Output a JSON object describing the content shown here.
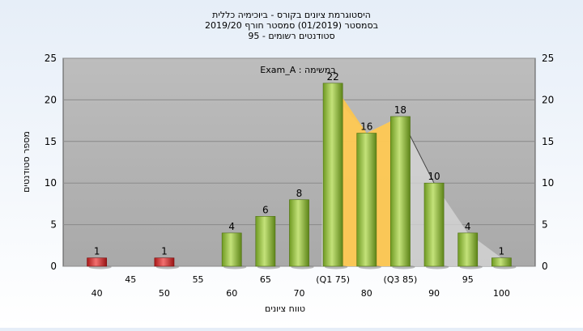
{
  "chart_data": {
    "type": "bar",
    "title_lines": [
      "היסטוגרמת ציונים בקורס - ביוכימיה כללית",
      "בסמסטר  (01/2019)  סמסטר חורף 2019/20",
      "סטודנטים רשומים - 95"
    ],
    "annotation": "Exam_A : במשימה",
    "xlabel": "טווח ציונים",
    "ylabel": "מספר סטודנטים",
    "ylim": [
      0,
      25
    ],
    "yticks": [
      0,
      5,
      10,
      15,
      20,
      25
    ],
    "xlim": [
      35,
      105
    ],
    "xticks": [
      {
        "x": 40,
        "label": "40",
        "row": 1
      },
      {
        "x": 45,
        "label": "45",
        "row": 0
      },
      {
        "x": 50,
        "label": "50",
        "row": 1
      },
      {
        "x": 55,
        "label": "55",
        "row": 0
      },
      {
        "x": 60,
        "label": "60",
        "row": 1
      },
      {
        "x": 65,
        "label": "65",
        "row": 0
      },
      {
        "x": 70,
        "label": "70",
        "row": 1
      },
      {
        "x": 75,
        "label": "(Q1 75)",
        "row": 0
      },
      {
        "x": 80,
        "label": "80",
        "row": 1
      },
      {
        "x": 85,
        "label": "(Q3 85)",
        "row": 0
      },
      {
        "x": 90,
        "label": "90",
        "row": 1
      },
      {
        "x": 95,
        "label": "95",
        "row": 0
      },
      {
        "x": 100,
        "label": "100",
        "row": 1
      }
    ],
    "bars": [
      {
        "x": 40,
        "value": 1,
        "status": "fail"
      },
      {
        "x": 50,
        "value": 1,
        "status": "fail"
      },
      {
        "x": 60,
        "value": 4,
        "status": "pass"
      },
      {
        "x": 65,
        "value": 6,
        "status": "pass"
      },
      {
        "x": 70,
        "value": 8,
        "status": "pass"
      },
      {
        "x": 75,
        "value": 22,
        "status": "pass"
      },
      {
        "x": 80,
        "value": 16,
        "status": "pass"
      },
      {
        "x": 85,
        "value": 18,
        "status": "pass"
      },
      {
        "x": 90,
        "value": 10,
        "status": "pass"
      },
      {
        "x": 95,
        "value": 4,
        "status": "pass"
      },
      {
        "x": 100,
        "value": 1,
        "status": "pass"
      }
    ],
    "iqr_band": {
      "from": 75,
      "to": 85
    },
    "grid": true,
    "colors": {
      "plot_background": "#b4b4b4",
      "pass_bar": "#8fb83a",
      "fail_bar": "#d63030",
      "iqr_band": "#ffc64a"
    }
  }
}
